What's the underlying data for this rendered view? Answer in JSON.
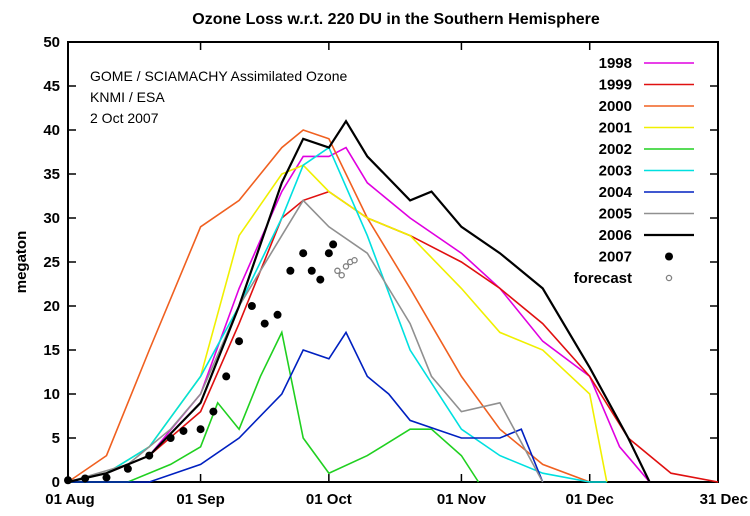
{
  "chart_data": {
    "type": "line",
    "title": "Ozone Loss w.r.t. 220 DU in the Southern Hemisphere",
    "xlabel": "",
    "ylabel": "megaton",
    "ylim": [
      0,
      50
    ],
    "xlim": [
      "01 Aug",
      "31 Dec"
    ],
    "yticks": [
      0,
      5,
      10,
      15,
      20,
      25,
      30,
      35,
      40,
      45,
      50
    ],
    "xticks": [
      "01 Aug",
      "01 Sep",
      "01 Oct",
      "01 Nov",
      "01 Dec",
      "31 Dec"
    ],
    "annotations": [
      "GOME / SCIAMACHY Assimilated Ozone",
      "KNMI / ESA",
      "2 Oct 2007"
    ],
    "legend_position": "top-right",
    "grid": false,
    "series": [
      {
        "name": "1998",
        "color": "#e000e0",
        "style": "line",
        "x": [
          "01 Aug",
          "10 Aug",
          "20 Aug",
          "01 Sep",
          "10 Sep",
          "20 Sep",
          "25 Sep",
          "01 Oct",
          "05 Oct",
          "10 Oct",
          "20 Oct",
          "01 Nov",
          "10 Nov",
          "20 Nov",
          "01 Dec",
          "08 Dec",
          "15 Dec"
        ],
        "y": [
          0,
          1,
          3,
          10,
          22,
          33,
          37,
          37,
          38,
          34,
          30,
          26,
          22,
          16,
          12,
          4,
          0
        ]
      },
      {
        "name": "1999",
        "color": "#e01010",
        "style": "line",
        "x": [
          "01 Aug",
          "10 Aug",
          "20 Aug",
          "01 Sep",
          "10 Sep",
          "20 Sep",
          "25 Sep",
          "01 Oct",
          "10 Oct",
          "20 Oct",
          "01 Nov",
          "10 Nov",
          "20 Nov",
          "01 Dec",
          "10 Dec",
          "20 Dec",
          "31 Dec"
        ],
        "y": [
          0,
          1,
          3,
          8,
          18,
          30,
          32,
          33,
          30,
          28,
          25,
          22,
          18,
          12,
          5,
          1,
          0
        ]
      },
      {
        "name": "2000",
        "color": "#f06020",
        "style": "line",
        "x": [
          "01 Aug",
          "10 Aug",
          "20 Aug",
          "01 Sep",
          "10 Sep",
          "20 Sep",
          "25 Sep",
          "01 Oct",
          "10 Oct",
          "20 Oct",
          "01 Nov",
          "10 Nov",
          "20 Nov",
          "01 Dec"
        ],
        "y": [
          0,
          3,
          15,
          29,
          32,
          38,
          40,
          39,
          30,
          22,
          12,
          6,
          2,
          0
        ]
      },
      {
        "name": "2001",
        "color": "#f0f000",
        "style": "line",
        "x": [
          "01 Aug",
          "10 Aug",
          "20 Aug",
          "01 Sep",
          "10 Sep",
          "20 Sep",
          "25 Sep",
          "01 Oct",
          "10 Oct",
          "20 Oct",
          "01 Nov",
          "10 Nov",
          "20 Nov",
          "01 Dec",
          "05 Dec"
        ],
        "y": [
          0,
          1,
          4,
          12,
          28,
          35,
          36,
          33,
          30,
          28,
          22,
          17,
          15,
          10,
          0
        ]
      },
      {
        "name": "2002",
        "color": "#20d020",
        "style": "line",
        "x": [
          "01 Aug",
          "15 Aug",
          "25 Aug",
          "01 Sep",
          "05 Sep",
          "10 Sep",
          "15 Sep",
          "20 Sep",
          "25 Sep",
          "01 Oct",
          "10 Oct",
          "20 Oct",
          "25 Oct",
          "01 Nov",
          "05 Nov"
        ],
        "y": [
          0,
          0,
          2,
          4,
          9,
          6,
          12,
          17,
          5,
          1,
          3,
          6,
          6,
          3,
          0
        ]
      },
      {
        "name": "2003",
        "color": "#00e0e0",
        "style": "line",
        "x": [
          "01 Aug",
          "10 Aug",
          "20 Aug",
          "01 Sep",
          "10 Sep",
          "20 Sep",
          "25 Sep",
          "01 Oct",
          "10 Oct",
          "20 Oct",
          "01 Nov",
          "10 Nov",
          "20 Nov",
          "01 Dec",
          "05 Dec"
        ],
        "y": [
          0,
          1,
          4,
          12,
          20,
          30,
          36,
          38,
          28,
          15,
          6,
          3,
          1,
          0,
          0
        ]
      },
      {
        "name": "2004",
        "color": "#0020c0",
        "style": "line",
        "x": [
          "01 Aug",
          "20 Aug",
          "01 Sep",
          "10 Sep",
          "20 Sep",
          "25 Sep",
          "01 Oct",
          "05 Oct",
          "10 Oct",
          "15 Oct",
          "20 Oct",
          "01 Nov",
          "10 Nov",
          "15 Nov",
          "20 Nov"
        ],
        "y": [
          0,
          0,
          2,
          5,
          10,
          15,
          14,
          17,
          12,
          10,
          7,
          5,
          5,
          6,
          0
        ]
      },
      {
        "name": "2005",
        "color": "#909090",
        "style": "line",
        "x": [
          "01 Aug",
          "15 Aug",
          "25 Aug",
          "01 Sep",
          "10 Sep",
          "20 Sep",
          "25 Sep",
          "01 Oct",
          "10 Oct",
          "20 Oct",
          "25 Oct",
          "01 Nov",
          "10 Nov",
          "20 Nov"
        ],
        "y": [
          0,
          2,
          6,
          10,
          20,
          28,
          32,
          29,
          26,
          18,
          12,
          8,
          9,
          0
        ]
      },
      {
        "name": "2006",
        "color": "#000000",
        "style": "line",
        "x": [
          "01 Aug",
          "10 Aug",
          "20 Aug",
          "01 Sep",
          "10 Sep",
          "20 Sep",
          "25 Sep",
          "01 Oct",
          "05 Oct",
          "10 Oct",
          "20 Oct",
          "25 Oct",
          "01 Nov",
          "10 Nov",
          "20 Nov",
          "01 Dec",
          "10 Dec",
          "15 Dec"
        ],
        "y": [
          0,
          1,
          3,
          9,
          20,
          34,
          39,
          38,
          41,
          37,
          32,
          33,
          29,
          26,
          22,
          13,
          5,
          0
        ]
      },
      {
        "name": "2007",
        "color": "#000000",
        "style": "dots",
        "x": [
          "01 Aug",
          "05 Aug",
          "10 Aug",
          "15 Aug",
          "20 Aug",
          "25 Aug",
          "28 Aug",
          "01 Sep",
          "04 Sep",
          "07 Sep",
          "10 Sep",
          "13 Sep",
          "16 Sep",
          "19 Sep",
          "22 Sep",
          "25 Sep",
          "27 Sep",
          "29 Sep",
          "01 Oct",
          "02 Oct"
        ],
        "y": [
          0.2,
          0.4,
          0.5,
          1.5,
          3,
          5,
          5.8,
          6,
          8,
          12,
          16,
          20,
          18,
          19,
          24,
          26,
          24,
          23,
          26,
          27
        ]
      },
      {
        "name": "forecast",
        "color": "#808080",
        "style": "open-dots",
        "x": [
          "03 Oct",
          "04 Oct",
          "05 Oct",
          "06 Oct",
          "07 Oct"
        ],
        "y": [
          24,
          23.5,
          24.5,
          25,
          25.2
        ]
      }
    ]
  }
}
